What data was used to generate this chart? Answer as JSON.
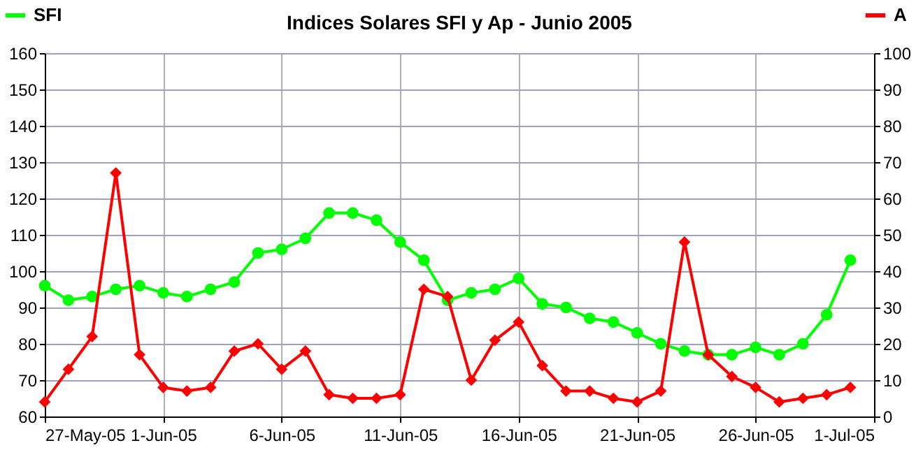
{
  "chart_data": {
    "type": "line",
    "title": "Indices Solares SFI y Ap - Junio 2005",
    "x": [
      "2005-05-27",
      "2005-05-28",
      "2005-05-29",
      "2005-05-30",
      "2005-05-31",
      "2005-06-01",
      "2005-06-02",
      "2005-06-03",
      "2005-06-04",
      "2005-06-05",
      "2005-06-06",
      "2005-06-07",
      "2005-06-08",
      "2005-06-09",
      "2005-06-10",
      "2005-06-11",
      "2005-06-12",
      "2005-06-13",
      "2005-06-14",
      "2005-06-15",
      "2005-06-16",
      "2005-06-17",
      "2005-06-18",
      "2005-06-19",
      "2005-06-20",
      "2005-06-21",
      "2005-06-22",
      "2005-06-23",
      "2005-06-24",
      "2005-06-25",
      "2005-06-26",
      "2005-06-27",
      "2005-06-28",
      "2005-06-29",
      "2005-06-30"
    ],
    "series": [
      {
        "name": "SFI",
        "color": "#00ff00",
        "marker": "circle",
        "axis": "y",
        "values": [
          96,
          92,
          93,
          95,
          96,
          94,
          93,
          95,
          97,
          105,
          106,
          109,
          116,
          116,
          114,
          108,
          103,
          92,
          94,
          95,
          98,
          91,
          90,
          87,
          86,
          83,
          80,
          78,
          77,
          77,
          79,
          77,
          80,
          88,
          103
        ]
      },
      {
        "name": "A",
        "color": "#ff0000",
        "marker": "diamond",
        "axis": "y2",
        "values": [
          4,
          13,
          22,
          67,
          17,
          8,
          7,
          8,
          18,
          20,
          13,
          18,
          6,
          5,
          5,
          6,
          35,
          33,
          10,
          21,
          26,
          14,
          7,
          7,
          5,
          4,
          7,
          48,
          17,
          11,
          8,
          4,
          5,
          6,
          8
        ]
      }
    ],
    "xlim": [
      "2005-05-27",
      "2005-07-01"
    ],
    "xticks": [
      {
        "value": "2005-05-27",
        "label": "27-May-05"
      },
      {
        "value": "2005-06-01",
        "label": "1-Jun-05"
      },
      {
        "value": "2005-06-06",
        "label": "6-Jun-05"
      },
      {
        "value": "2005-06-11",
        "label": "11-Jun-05"
      },
      {
        "value": "2005-06-16",
        "label": "16-Jun-05"
      },
      {
        "value": "2005-06-21",
        "label": "21-Jun-05"
      },
      {
        "value": "2005-06-26",
        "label": "26-Jun-05"
      },
      {
        "value": "2005-07-01",
        "label": "1-Jul-05"
      }
    ],
    "ylim": [
      60,
      160
    ],
    "yticks": [
      60,
      70,
      80,
      90,
      100,
      110,
      120,
      130,
      140,
      150,
      160
    ],
    "y2lim": [
      0,
      100
    ],
    "y2ticks": [
      0,
      10,
      20,
      30,
      40,
      50,
      60,
      70,
      80,
      90,
      100
    ],
    "grid": true,
    "legend": "top",
    "line_style": "solid"
  }
}
